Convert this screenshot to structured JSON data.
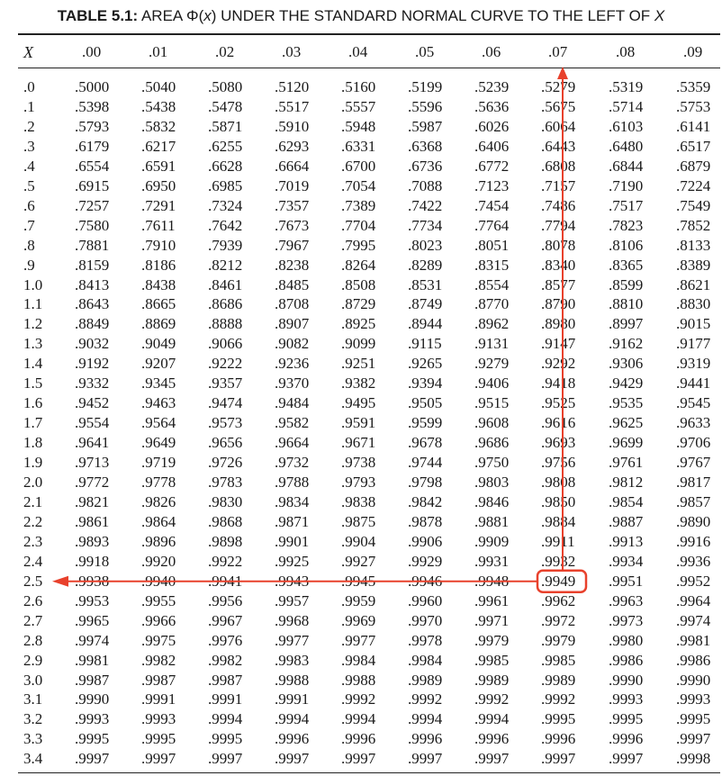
{
  "title": {
    "bold": "TABLE 5.1:",
    "pre": " AREA Φ(",
    "x1": "x",
    "mid": ") UNDER THE STANDARD NORMAL CURVE TO THE LEFT OF ",
    "x2": "X"
  },
  "table": {
    "row_header": "X",
    "columns": [
      ".00",
      ".01",
      ".02",
      ".03",
      ".04",
      ".05",
      ".06",
      ".07",
      ".08",
      ".09"
    ],
    "rows": [
      {
        "x": ".0",
        "values": [
          ".5000",
          ".5040",
          ".5080",
          ".5120",
          ".5160",
          ".5199",
          ".5239",
          ".5279",
          ".5319",
          ".5359"
        ]
      },
      {
        "x": ".1",
        "values": [
          ".5398",
          ".5438",
          ".5478",
          ".5517",
          ".5557",
          ".5596",
          ".5636",
          ".5675",
          ".5714",
          ".5753"
        ]
      },
      {
        "x": ".2",
        "values": [
          ".5793",
          ".5832",
          ".5871",
          ".5910",
          ".5948",
          ".5987",
          ".6026",
          ".6064",
          ".6103",
          ".6141"
        ]
      },
      {
        "x": ".3",
        "values": [
          ".6179",
          ".6217",
          ".6255",
          ".6293",
          ".6331",
          ".6368",
          ".6406",
          ".6443",
          ".6480",
          ".6517"
        ]
      },
      {
        "x": ".4",
        "values": [
          ".6554",
          ".6591",
          ".6628",
          ".6664",
          ".6700",
          ".6736",
          ".6772",
          ".6808",
          ".6844",
          ".6879"
        ]
      },
      {
        "x": ".5",
        "values": [
          ".6915",
          ".6950",
          ".6985",
          ".7019",
          ".7054",
          ".7088",
          ".7123",
          ".7157",
          ".7190",
          ".7224"
        ]
      },
      {
        "x": ".6",
        "values": [
          ".7257",
          ".7291",
          ".7324",
          ".7357",
          ".7389",
          ".7422",
          ".7454",
          ".7486",
          ".7517",
          ".7549"
        ]
      },
      {
        "x": ".7",
        "values": [
          ".7580",
          ".7611",
          ".7642",
          ".7673",
          ".7704",
          ".7734",
          ".7764",
          ".7794",
          ".7823",
          ".7852"
        ]
      },
      {
        "x": ".8",
        "values": [
          ".7881",
          ".7910",
          ".7939",
          ".7967",
          ".7995",
          ".8023",
          ".8051",
          ".8078",
          ".8106",
          ".8133"
        ]
      },
      {
        "x": ".9",
        "values": [
          ".8159",
          ".8186",
          ".8212",
          ".8238",
          ".8264",
          ".8289",
          ".8315",
          ".8340",
          ".8365",
          ".8389"
        ]
      },
      {
        "x": "1.0",
        "values": [
          ".8413",
          ".8438",
          ".8461",
          ".8485",
          ".8508",
          ".8531",
          ".8554",
          ".8577",
          ".8599",
          ".8621"
        ]
      },
      {
        "x": "1.1",
        "values": [
          ".8643",
          ".8665",
          ".8686",
          ".8708",
          ".8729",
          ".8749",
          ".8770",
          ".8790",
          ".8810",
          ".8830"
        ]
      },
      {
        "x": "1.2",
        "values": [
          ".8849",
          ".8869",
          ".8888",
          ".8907",
          ".8925",
          ".8944",
          ".8962",
          ".8980",
          ".8997",
          ".9015"
        ]
      },
      {
        "x": "1.3",
        "values": [
          ".9032",
          ".9049",
          ".9066",
          ".9082",
          ".9099",
          ".9115",
          ".9131",
          ".9147",
          ".9162",
          ".9177"
        ]
      },
      {
        "x": "1.4",
        "values": [
          ".9192",
          ".9207",
          ".9222",
          ".9236",
          ".9251",
          ".9265",
          ".9279",
          ".9292",
          ".9306",
          ".9319"
        ]
      },
      {
        "x": "1.5",
        "values": [
          ".9332",
          ".9345",
          ".9357",
          ".9370",
          ".9382",
          ".9394",
          ".9406",
          ".9418",
          ".9429",
          ".9441"
        ]
      },
      {
        "x": "1.6",
        "values": [
          ".9452",
          ".9463",
          ".9474",
          ".9484",
          ".9495",
          ".9505",
          ".9515",
          ".9525",
          ".9535",
          ".9545"
        ]
      },
      {
        "x": "1.7",
        "values": [
          ".9554",
          ".9564",
          ".9573",
          ".9582",
          ".9591",
          ".9599",
          ".9608",
          ".9616",
          ".9625",
          ".9633"
        ]
      },
      {
        "x": "1.8",
        "values": [
          ".9641",
          ".9649",
          ".9656",
          ".9664",
          ".9671",
          ".9678",
          ".9686",
          ".9693",
          ".9699",
          ".9706"
        ]
      },
      {
        "x": "1.9",
        "values": [
          ".9713",
          ".9719",
          ".9726",
          ".9732",
          ".9738",
          ".9744",
          ".9750",
          ".9756",
          ".9761",
          ".9767"
        ]
      },
      {
        "x": "2.0",
        "values": [
          ".9772",
          ".9778",
          ".9783",
          ".9788",
          ".9793",
          ".9798",
          ".9803",
          ".9808",
          ".9812",
          ".9817"
        ]
      },
      {
        "x": "2.1",
        "values": [
          ".9821",
          ".9826",
          ".9830",
          ".9834",
          ".9838",
          ".9842",
          ".9846",
          ".9850",
          ".9854",
          ".9857"
        ]
      },
      {
        "x": "2.2",
        "values": [
          ".9861",
          ".9864",
          ".9868",
          ".9871",
          ".9875",
          ".9878",
          ".9881",
          ".9884",
          ".9887",
          ".9890"
        ]
      },
      {
        "x": "2.3",
        "values": [
          ".9893",
          ".9896",
          ".9898",
          ".9901",
          ".9904",
          ".9906",
          ".9909",
          ".9911",
          ".9913",
          ".9916"
        ]
      },
      {
        "x": "2.4",
        "values": [
          ".9918",
          ".9920",
          ".9922",
          ".9925",
          ".9927",
          ".9929",
          ".9931",
          ".9932",
          ".9934",
          ".9936"
        ]
      },
      {
        "x": "2.5",
        "values": [
          ".9938",
          ".9940",
          ".9941",
          ".9943",
          ".9945",
          ".9946",
          ".9948",
          ".9949",
          ".9951",
          ".9952"
        ]
      },
      {
        "x": "2.6",
        "values": [
          ".9953",
          ".9955",
          ".9956",
          ".9957",
          ".9959",
          ".9960",
          ".9961",
          ".9962",
          ".9963",
          ".9964"
        ]
      },
      {
        "x": "2.7",
        "values": [
          ".9965",
          ".9966",
          ".9967",
          ".9968",
          ".9969",
          ".9970",
          ".9971",
          ".9972",
          ".9973",
          ".9974"
        ]
      },
      {
        "x": "2.8",
        "values": [
          ".9974",
          ".9975",
          ".9976",
          ".9977",
          ".9977",
          ".9978",
          ".9979",
          ".9979",
          ".9980",
          ".9981"
        ]
      },
      {
        "x": "2.9",
        "values": [
          ".9981",
          ".9982",
          ".9982",
          ".9983",
          ".9984",
          ".9984",
          ".9985",
          ".9985",
          ".9986",
          ".9986"
        ]
      },
      {
        "x": "3.0",
        "values": [
          ".9987",
          ".9987",
          ".9987",
          ".9988",
          ".9988",
          ".9989",
          ".9989",
          ".9989",
          ".9990",
          ".9990"
        ]
      },
      {
        "x": "3.1",
        "values": [
          ".9990",
          ".9991",
          ".9991",
          ".9991",
          ".9992",
          ".9992",
          ".9992",
          ".9992",
          ".9993",
          ".9993"
        ]
      },
      {
        "x": "3.2",
        "values": [
          ".9993",
          ".9993",
          ".9994",
          ".9994",
          ".9994",
          ".9994",
          ".9994",
          ".9995",
          ".9995",
          ".9995"
        ]
      },
      {
        "x": "3.3",
        "values": [
          ".9995",
          ".9995",
          ".9995",
          ".9996",
          ".9996",
          ".9996",
          ".9996",
          ".9996",
          ".9996",
          ".9997"
        ]
      },
      {
        "x": "3.4",
        "values": [
          ".9997",
          ".9997",
          ".9997",
          ".9997",
          ".9997",
          ".9997",
          ".9997",
          ".9997",
          ".9997",
          ".9998"
        ]
      }
    ]
  },
  "annotation": {
    "highlight_row": "2.5",
    "highlight_column": ".07",
    "highlight_value": ".9949",
    "color": "#e8412c"
  }
}
